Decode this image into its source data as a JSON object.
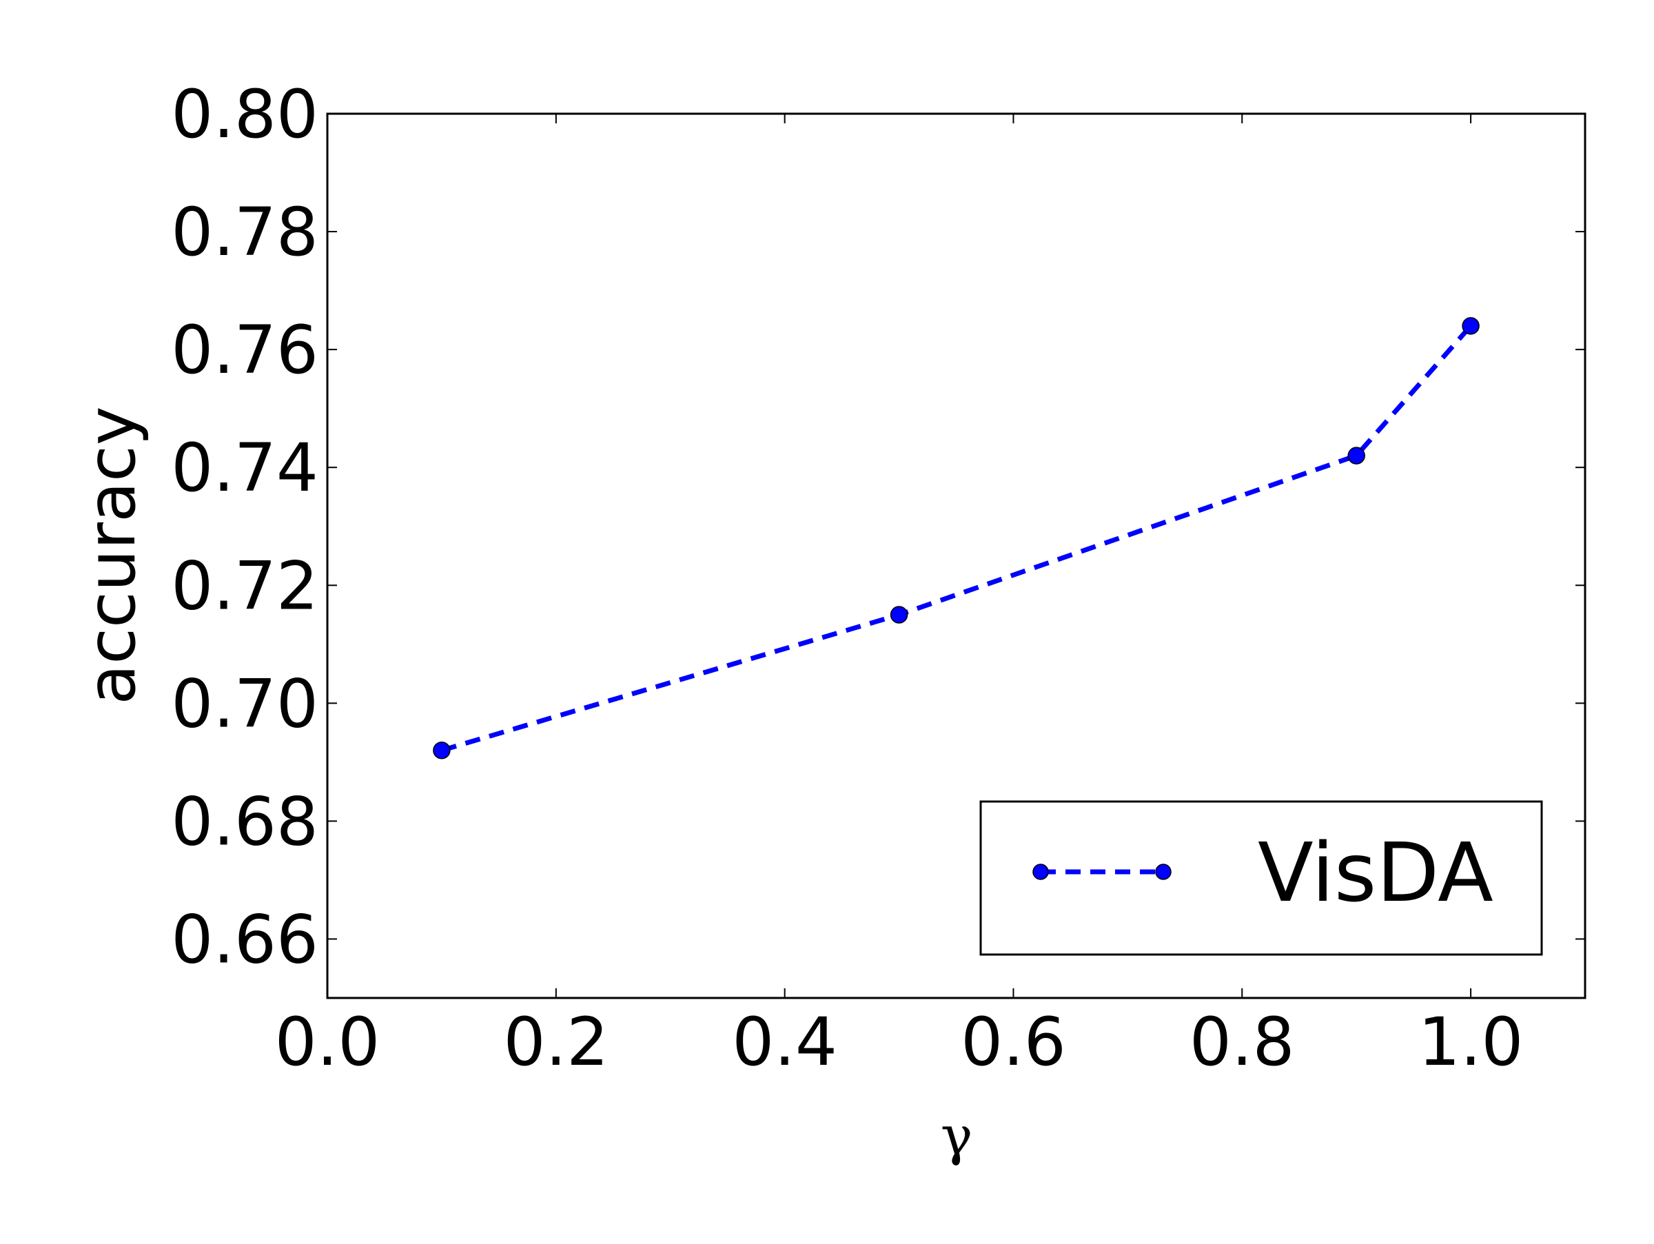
{
  "chart_data": {
    "type": "line",
    "title": "",
    "xlabel": "γ",
    "ylabel": "accuracy",
    "xlim": [
      0.0,
      1.1
    ],
    "ylim": [
      0.65,
      0.8
    ],
    "x_ticks": [
      0.0,
      0.2,
      0.4,
      0.6,
      0.8,
      1.0
    ],
    "x_tick_labels": [
      "0.0",
      "0.2",
      "0.4",
      "0.6",
      "0.8",
      "1.0"
    ],
    "y_ticks": [
      0.66,
      0.68,
      0.7,
      0.72,
      0.74,
      0.76,
      0.78,
      0.8
    ],
    "y_tick_labels": [
      "0.66",
      "0.68",
      "0.70",
      "0.72",
      "0.74",
      "0.76",
      "0.78",
      "0.80"
    ],
    "grid": false,
    "legend_position": "lower-right",
    "series": [
      {
        "name": "VisDA",
        "color": "#0000ff",
        "line_style": "dashed",
        "marker": "circle",
        "x": [
          0.1,
          0.5,
          0.9,
          1.0
        ],
        "y": [
          0.692,
          0.715,
          0.742,
          0.764
        ]
      }
    ]
  }
}
